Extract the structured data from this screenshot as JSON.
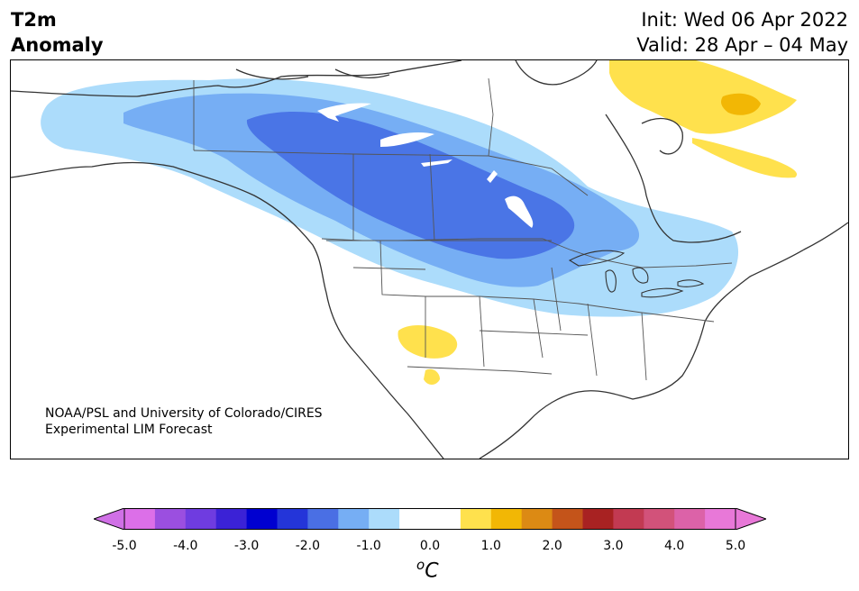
{
  "header": {
    "title_line1": "T2m",
    "title_line2": "Anomaly",
    "init_label": "Init: Wed 06 Apr 2022",
    "valid_label": "Valid: 28 Apr – 04 May"
  },
  "map": {
    "region": "North America",
    "credit_line1": "NOAA/PSL and University of Colorado/CIRES",
    "credit_line2": "Experimental LIM Forecast",
    "anomaly_areas": [
      {
        "name": "cold-anomaly-core",
        "level": "-2.5 to -2.0"
      },
      {
        "name": "cold-anomaly-mid",
        "level": "-1.5 to -1.0"
      },
      {
        "name": "cold-anomaly-outer",
        "level": "-1.0 to -0.5"
      },
      {
        "name": "warm-anomaly-greenland",
        "level": "0.5 to 1.5"
      },
      {
        "name": "warm-anomaly-southwest",
        "level": "0.5 to 1.0"
      }
    ]
  },
  "colorbar": {
    "units_base": "C",
    "units_sup": "o",
    "ticks": [
      "-5.0",
      "-4.0",
      "-3.0",
      "-2.0",
      "-1.0",
      "0.0",
      "1.0",
      "2.0",
      "3.0",
      "4.0",
      "5.0"
    ],
    "colors": [
      "#dc6fe8",
      "#9b4fe0",
      "#6f3ce0",
      "#3b22d6",
      "#0000d0",
      "#2435d9",
      "#4a6fe4",
      "#76aef4",
      "#acdcfb",
      "#ffffff",
      "#ffffff",
      "#ffe14d",
      "#f2b705",
      "#dc8a14",
      "#c4541a",
      "#a82222",
      "#c23a52",
      "#d2527a",
      "#dc62a8",
      "#e878d8"
    ],
    "extend_low_color": "#d070e6",
    "extend_high_color": "#e878d8"
  }
}
